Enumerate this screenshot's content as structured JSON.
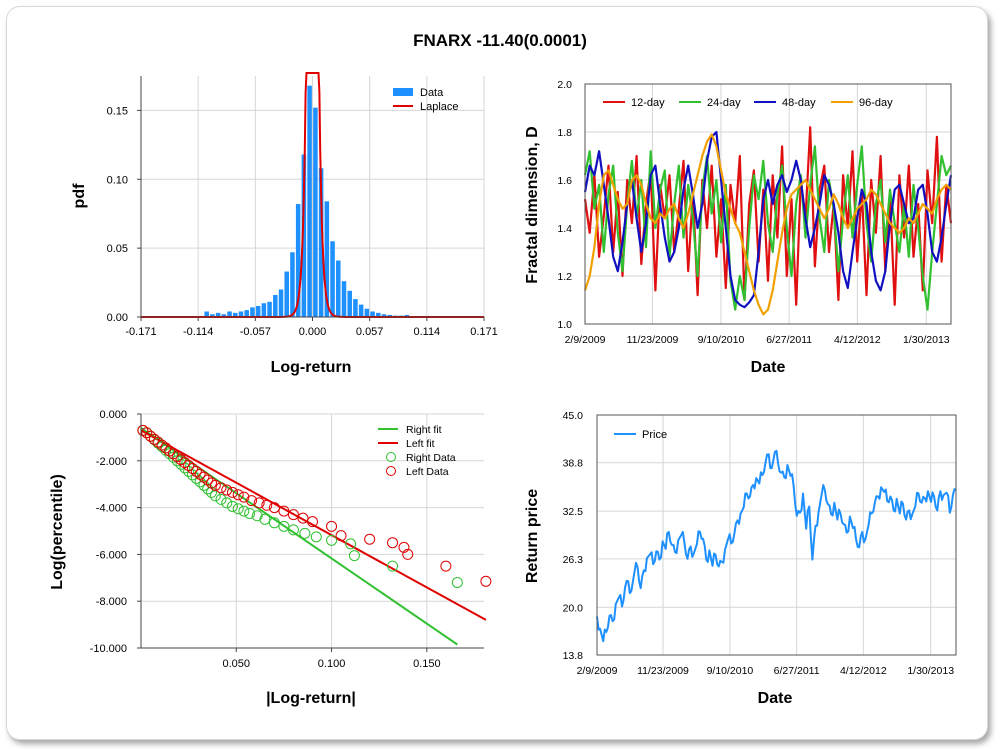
{
  "title": "FNARX -11.40(0.0001)",
  "chart_data": [
    {
      "type": "bar",
      "panel": "histogram",
      "xlabel": "Log-return",
      "ylabel": "pdf",
      "xticks": [
        "-0.171",
        "-0.114",
        "-0.057",
        "0.000",
        "0.057",
        "0.114",
        "0.171"
      ],
      "xtick_values": [
        -0.171,
        -0.114,
        -0.057,
        0.0,
        0.057,
        0.114,
        0.171
      ],
      "yticks": [
        "0.00",
        "0.05",
        "0.10",
        "0.15"
      ],
      "ytick_values": [
        0.0,
        0.05,
        0.1,
        0.15
      ],
      "xlim": [
        -0.171,
        0.171
      ],
      "ylim": [
        0,
        0.175
      ],
      "legend": [
        "Data",
        "Laplace"
      ],
      "legend_position": "top-right",
      "colors": {
        "bars": "#1e90ff",
        "fit": "#e00000"
      },
      "bin_width": 0.0057,
      "bin_centers": [
        -0.1625,
        -0.1568,
        -0.1511,
        -0.1454,
        -0.1397,
        -0.134,
        -0.1283,
        -0.1226,
        -0.1169,
        -0.1112,
        -0.1055,
        -0.0998,
        -0.0941,
        -0.0884,
        -0.0827,
        -0.077,
        -0.0713,
        -0.0656,
        -0.0599,
        -0.0542,
        -0.0485,
        -0.0428,
        -0.0371,
        -0.0314,
        -0.0257,
        -0.02,
        -0.0143,
        -0.0086,
        -0.0029,
        0.0029,
        0.0086,
        0.0143,
        0.02,
        0.0257,
        0.0314,
        0.0371,
        0.0428,
        0.0485,
        0.0542,
        0.0599,
        0.0656,
        0.0713,
        0.077,
        0.0827,
        0.0884,
        0.0941,
        0.0998,
        0.1055,
        0.1112,
        0.1169,
        0.1226,
        0.1283,
        0.134,
        0.1397,
        0.1454,
        0.1511,
        0.1568,
        0.1625
      ],
      "values": [
        0.0,
        0.0,
        0.0,
        0.0,
        0.0,
        0.0,
        0.0,
        0.0,
        0.0005,
        0.0,
        0.004,
        0.002,
        0.003,
        0.002,
        0.004,
        0.003,
        0.004,
        0.005,
        0.007,
        0.008,
        0.01,
        0.011,
        0.016,
        0.02,
        0.033,
        0.047,
        0.082,
        0.118,
        0.168,
        0.152,
        0.108,
        0.084,
        0.055,
        0.041,
        0.026,
        0.019,
        0.013,
        0.009,
        0.006,
        0.004,
        0.003,
        0.002,
        0.0015,
        0.001,
        0.001,
        0.0015,
        0.0005,
        0.0,
        0.0005,
        0.0,
        0.0,
        0.0,
        0.0,
        0.0,
        0.0,
        0.0,
        0.0,
        0.0
      ],
      "fit": {
        "name": "Laplace",
        "mu": 0.0,
        "b": 0.0029
      }
    },
    {
      "type": "line",
      "panel": "fractal",
      "xlabel": "Date",
      "ylabel": "Fractal dimension, D",
      "xticks": [
        "2/9/2009",
        "11/23/2009",
        "9/10/2010",
        "6/27/2011",
        "4/12/2012",
        "1/30/2013"
      ],
      "xtick_dates": [
        "2009-02-09",
        "2009-11-23",
        "2010-09-10",
        "2011-06-27",
        "2012-04-12",
        "2013-01-30"
      ],
      "yticks": [
        "1.0",
        "1.2",
        "1.4",
        "1.6",
        "1.8",
        "2.0"
      ],
      "ytick_values": [
        1.0,
        1.2,
        1.4,
        1.6,
        1.8,
        2.0
      ],
      "ylim": [
        1.0,
        2.0
      ],
      "x_range": [
        "2009-02-09",
        "2013-05-15"
      ],
      "legend_position": "top",
      "series": [
        {
          "name": "12-day",
          "color": "#e01010",
          "y": [
            1.52,
            1.38,
            1.62,
            1.28,
            1.45,
            1.66,
            1.3,
            1.55,
            1.2,
            1.6,
            1.42,
            1.7,
            1.25,
            1.5,
            1.64,
            1.14,
            1.58,
            1.44,
            1.62,
            1.3,
            1.48,
            1.68,
            1.22,
            1.55,
            1.12,
            1.6,
            1.4,
            1.66,
            1.28,
            1.52,
            1.15,
            1.58,
            1.42,
            1.7,
            1.1,
            1.5,
            1.64,
            1.26,
            1.56,
            1.18,
            1.62,
            1.36,
            1.74,
            1.2,
            1.52,
            1.08,
            1.6,
            1.44,
            1.82,
            1.24,
            1.56,
            1.66,
            1.3,
            1.5,
            1.1,
            1.62,
            1.4,
            1.72,
            1.26,
            1.56,
            1.12,
            1.6,
            1.38,
            1.7,
            1.22,
            1.54,
            1.08,
            1.62,
            1.36,
            1.66,
            1.28,
            1.5,
            1.14,
            1.64,
            1.42,
            1.78,
            1.26,
            1.58,
            1.42
          ]
        },
        {
          "name": "24-day",
          "color": "#30c030",
          "y": [
            1.62,
            1.72,
            1.48,
            1.58,
            1.3,
            1.54,
            1.66,
            1.38,
            1.22,
            1.5,
            1.68,
            1.44,
            1.6,
            1.32,
            1.72,
            1.4,
            1.56,
            1.64,
            1.28,
            1.5,
            1.66,
            1.36,
            1.58,
            1.44,
            1.2,
            1.56,
            1.7,
            1.46,
            1.6,
            1.34,
            1.58,
            1.18,
            1.06,
            1.2,
            1.1,
            1.4,
            1.62,
            1.52,
            1.68,
            1.42,
            1.3,
            1.54,
            1.66,
            1.4,
            1.2,
            1.5,
            1.62,
            1.36,
            1.58,
            1.74,
            1.44,
            1.3,
            1.6,
            1.48,
            1.22,
            1.44,
            1.62,
            1.36,
            1.58,
            1.74,
            1.42,
            1.26,
            1.5,
            1.6,
            1.34,
            1.56,
            1.42,
            1.3,
            1.5,
            1.28,
            1.58,
            1.4,
            1.2,
            1.06,
            1.3,
            1.5,
            1.7,
            1.62,
            1.66
          ]
        },
        {
          "name": "48-day",
          "color": "#1010c0",
          "y": [
            1.55,
            1.66,
            1.62,
            1.72,
            1.58,
            1.44,
            1.28,
            1.22,
            1.34,
            1.5,
            1.6,
            1.44,
            1.3,
            1.42,
            1.62,
            1.66,
            1.5,
            1.36,
            1.26,
            1.3,
            1.4,
            1.56,
            1.66,
            1.54,
            1.4,
            1.5,
            1.68,
            1.78,
            1.8,
            1.6,
            1.4,
            1.2,
            1.1,
            1.08,
            1.07,
            1.09,
            1.12,
            1.3,
            1.52,
            1.6,
            1.5,
            1.58,
            1.62,
            1.55,
            1.6,
            1.68,
            1.6,
            1.44,
            1.32,
            1.4,
            1.5,
            1.62,
            1.58,
            1.5,
            1.38,
            1.22,
            1.15,
            1.3,
            1.44,
            1.56,
            1.5,
            1.3,
            1.18,
            1.14,
            1.22,
            1.42,
            1.56,
            1.58,
            1.5,
            1.42,
            1.44,
            1.56,
            1.58,
            1.46,
            1.3,
            1.26,
            1.36,
            1.5,
            1.62
          ]
        },
        {
          "name": "96-day",
          "color": "#f0a000",
          "y": [
            1.14,
            1.2,
            1.32,
            1.5,
            1.62,
            1.64,
            1.58,
            1.52,
            1.48,
            1.5,
            1.6,
            1.62,
            1.58,
            1.5,
            1.44,
            1.42,
            1.46,
            1.44,
            1.48,
            1.5,
            1.44,
            1.4,
            1.46,
            1.54,
            1.62,
            1.7,
            1.76,
            1.79,
            1.74,
            1.64,
            1.54,
            1.48,
            1.42,
            1.38,
            1.3,
            1.22,
            1.14,
            1.08,
            1.04,
            1.06,
            1.14,
            1.26,
            1.38,
            1.48,
            1.54,
            1.56,
            1.58,
            1.6,
            1.56,
            1.52,
            1.48,
            1.44,
            1.48,
            1.54,
            1.5,
            1.44,
            1.4,
            1.44,
            1.48,
            1.5,
            1.52,
            1.56,
            1.54,
            1.5,
            1.46,
            1.42,
            1.4,
            1.38,
            1.4,
            1.44,
            1.42,
            1.46,
            1.5,
            1.48,
            1.46,
            1.52,
            1.56,
            1.58,
            1.56
          ]
        }
      ]
    },
    {
      "type": "scatter",
      "panel": "tail",
      "xlabel": "|Log-return|",
      "ylabel": "Log(percentile)",
      "xticks": [
        "0.050",
        "0.100",
        "0.150"
      ],
      "xtick_values": [
        0.05,
        0.1,
        0.15
      ],
      "yticks": [
        "0.000",
        "-2.000",
        "-4.000",
        "-6.000",
        "-8.000",
        "-10.000"
      ],
      "ytick_values": [
        0.0,
        -2.0,
        -4.0,
        -6.0,
        -8.0,
        -10.0
      ],
      "xlim": [
        0.0,
        0.18
      ],
      "ylim": [
        -10.0,
        0.0
      ],
      "legend_position": "top-right",
      "series": [
        {
          "name": "Right fit",
          "color": "#30c030",
          "kind": "line",
          "x": [
            0.0,
            0.166
          ],
          "y": [
            -0.6,
            -9.85
          ]
        },
        {
          "name": "Left fit",
          "color": "#e00000",
          "kind": "line",
          "x": [
            0.0,
            0.181
          ],
          "y": [
            -0.7,
            -8.8
          ]
        },
        {
          "name": "Right Data",
          "color": "#30c030",
          "kind": "points",
          "x": [
            0.001,
            0.003,
            0.005,
            0.007,
            0.009,
            0.011,
            0.013,
            0.015,
            0.017,
            0.019,
            0.021,
            0.023,
            0.025,
            0.027,
            0.029,
            0.031,
            0.033,
            0.035,
            0.037,
            0.039,
            0.042,
            0.045,
            0.048,
            0.051,
            0.054,
            0.057,
            0.061,
            0.065,
            0.07,
            0.075,
            0.08,
            0.086,
            0.092,
            0.1,
            0.11,
            0.112,
            0.132,
            0.166
          ],
          "y": [
            -0.7,
            -0.8,
            -0.95,
            -1.1,
            -1.25,
            -1.4,
            -1.55,
            -1.7,
            -1.85,
            -2.0,
            -2.15,
            -2.3,
            -2.45,
            -2.6,
            -2.75,
            -2.9,
            -3.05,
            -3.2,
            -3.35,
            -3.5,
            -3.65,
            -3.8,
            -3.95,
            -4.05,
            -4.15,
            -4.25,
            -4.35,
            -4.5,
            -4.65,
            -4.8,
            -4.95,
            -5.1,
            -5.25,
            -5.4,
            -5.55,
            -6.05,
            -6.5,
            -7.2
          ]
        },
        {
          "name": "Left Data",
          "color": "#e00000",
          "kind": "points",
          "x": [
            0.001,
            0.003,
            0.005,
            0.007,
            0.009,
            0.011,
            0.013,
            0.015,
            0.017,
            0.019,
            0.021,
            0.023,
            0.025,
            0.027,
            0.029,
            0.031,
            0.033,
            0.035,
            0.037,
            0.039,
            0.042,
            0.045,
            0.048,
            0.051,
            0.054,
            0.058,
            0.062,
            0.066,
            0.07,
            0.075,
            0.08,
            0.085,
            0.09,
            0.1,
            0.105,
            0.12,
            0.132,
            0.138,
            0.14,
            0.16,
            0.181
          ],
          "y": [
            -0.7,
            -0.8,
            -0.95,
            -1.08,
            -1.2,
            -1.33,
            -1.45,
            -1.58,
            -1.7,
            -1.82,
            -1.95,
            -2.08,
            -2.2,
            -2.33,
            -2.45,
            -2.58,
            -2.7,
            -2.82,
            -2.95,
            -3.05,
            -3.15,
            -3.25,
            -3.35,
            -3.45,
            -3.55,
            -3.7,
            -3.8,
            -3.9,
            -4.0,
            -4.15,
            -4.3,
            -4.45,
            -4.6,
            -4.8,
            -5.2,
            -5.35,
            -5.5,
            -5.7,
            -6.0,
            -6.5,
            -7.15
          ]
        }
      ]
    },
    {
      "type": "line",
      "panel": "price",
      "xlabel": "Date",
      "ylabel": "Return price",
      "xticks": [
        "2/9/2009",
        "11/23/2009",
        "9/10/2010",
        "6/27/2011",
        "4/12/2012",
        "1/30/2013"
      ],
      "xtick_dates": [
        "2009-02-09",
        "2009-11-23",
        "2010-09-10",
        "2011-06-27",
        "2012-04-12",
        "2013-01-30"
      ],
      "yticks": [
        "13.8",
        "20.0",
        "26.3",
        "32.5",
        "38.8",
        "45.0"
      ],
      "ytick_values": [
        13.8,
        20.0,
        26.3,
        32.5,
        38.8,
        45.0
      ],
      "ylim": [
        13.8,
        45.0
      ],
      "x_range": [
        "2009-02-09",
        "2013-05-20"
      ],
      "legend_position": "top-left",
      "series": [
        {
          "name": "Price",
          "color": "#1e90ff",
          "y": [
            18.8,
            17.2,
            15.6,
            16.8,
            18.9,
            18.2,
            20.4,
            21.3,
            20.1,
            22.6,
            23.4,
            22.1,
            24.6,
            25.2,
            22.5,
            24.8,
            26.4,
            26.9,
            25.6,
            27.3,
            26.2,
            28.6,
            27.6,
            29.8,
            28.1,
            27.2,
            28.7,
            29.4,
            28.4,
            26.3,
            27.9,
            27.0,
            28.2,
            29.8,
            28.9,
            26.2,
            27.4,
            25.4,
            26.8,
            25.3,
            25.9,
            27.5,
            28.9,
            28.3,
            29.6,
            31.3,
            32.2,
            33.0,
            34.8,
            34.4,
            35.9,
            36.8,
            36.1,
            37.2,
            38.9,
            39.9,
            38.1,
            40.2,
            38.7,
            37.5,
            36.9,
            38.5,
            37.1,
            35.7,
            31.9,
            32.3,
            34.8,
            30.2,
            33.1,
            26.2,
            30.6,
            32.4,
            34.8,
            35.2,
            33.4,
            32.1,
            33.6,
            31.4,
            32.2,
            30.8,
            29.7,
            31.8,
            30.3,
            28.8,
            27.8,
            29.8,
            28.9,
            30.7,
            32.2,
            33.6,
            34.4,
            35.6,
            35.0,
            33.8,
            34.4,
            32.6,
            34.1,
            32.2,
            33.5,
            31.4,
            32.6,
            32.1,
            33.2,
            34.8,
            33.6,
            34.2,
            35.1,
            33.7,
            34.4,
            32.6,
            35.1,
            34.6,
            34.9,
            32.3,
            34.6,
            35.2
          ]
        }
      ]
    }
  ]
}
